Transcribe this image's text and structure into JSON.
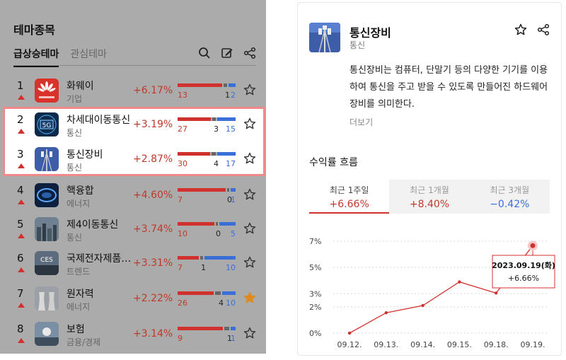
{
  "left": {
    "title": "테마종목",
    "tabs": [
      {
        "label": "급상승테마"
      },
      {
        "label": "관심테마"
      }
    ],
    "rows": [
      {
        "rank": "1",
        "name": "화웨이",
        "category": "기업",
        "change": "+6.17%",
        "up": "13",
        "flat": "1",
        "down": "2",
        "starred": false,
        "thumb": "huawei-thumbnail"
      },
      {
        "rank": "2",
        "name": "차세대이동통신",
        "category": "통신",
        "change": "+3.19%",
        "up": "27",
        "flat": "3",
        "down": "15",
        "starred": false,
        "thumb": "5g-thumbnail"
      },
      {
        "rank": "3",
        "name": "통신장비",
        "category": "통신",
        "change": "+2.87%",
        "up": "30",
        "flat": "4",
        "down": "17",
        "starred": false,
        "thumb": "telecom-tower-thumbnail"
      },
      {
        "rank": "4",
        "name": "핵융합",
        "category": "에너지",
        "change": "+4.60%",
        "up": "7",
        "flat": "0",
        "down": "1",
        "starred": false,
        "thumb": "fusion-thumbnail"
      },
      {
        "rank": "5",
        "name": "제4이동통신",
        "category": "통신",
        "change": "+3.74%",
        "up": "10",
        "flat": "0",
        "down": "5",
        "starred": false,
        "thumb": "city-thumbnail"
      },
      {
        "rank": "6",
        "name": "국제전자제품…",
        "category": "트렌드",
        "change": "+3.31%",
        "up": "7",
        "flat": "1",
        "down": "10",
        "starred": false,
        "thumb": "ces-thumbnail"
      },
      {
        "rank": "7",
        "name": "원자력",
        "category": "에너지",
        "change": "+2.22%",
        "up": "26",
        "flat": "4",
        "down": "10",
        "starred": true,
        "thumb": "nuclear-thumbnail"
      },
      {
        "rank": "8",
        "name": "보험",
        "category": "금융/경제",
        "change": "+3.14%",
        "up": "9",
        "flat": "1",
        "down": "1",
        "starred": false,
        "thumb": "insurance-thumbnail"
      }
    ]
  },
  "detail": {
    "title": "통신장비",
    "category": "통신",
    "description": "통신장비는 컴퓨터, 단말기 등의 다양한 기기를 이용하여 통신을 주고 받을 수 있도록 만들어진 하드웨어 장비를 의미한다.",
    "more": "더보기",
    "section_title": "수익률 흐름",
    "periods": [
      {
        "label": "최근 1주일",
        "value": "+6.66%",
        "active": true,
        "sign": "pos"
      },
      {
        "label": "최근 1개월",
        "value": "+8.40%",
        "active": false,
        "sign": "pos"
      },
      {
        "label": "최근 3개월",
        "value": "−0.42%",
        "active": false,
        "sign": "neg"
      }
    ],
    "tooltip": {
      "date": "2023.09.19(화)",
      "value": "+6.66%"
    }
  },
  "colors": {
    "up": "#d0312d",
    "down": "#3a6fd8",
    "flat": "#666666",
    "highlight": "#f08a8a"
  },
  "chart_data": {
    "type": "line",
    "x": [
      "09.12.",
      "09.13.",
      "09.14.",
      "09.15.",
      "09.18.",
      "09.19."
    ],
    "y": [
      0,
      1.55,
      2.1,
      3.9,
      3.05,
      6.66
    ],
    "ylim": [
      0,
      7
    ],
    "yticks": [
      "0%",
      "2%",
      "3%",
      "5%",
      "7%"
    ],
    "ytick_values": [
      0,
      2,
      3,
      5,
      7
    ],
    "grid": "horizontal-dashed",
    "color": "#d0312d"
  }
}
